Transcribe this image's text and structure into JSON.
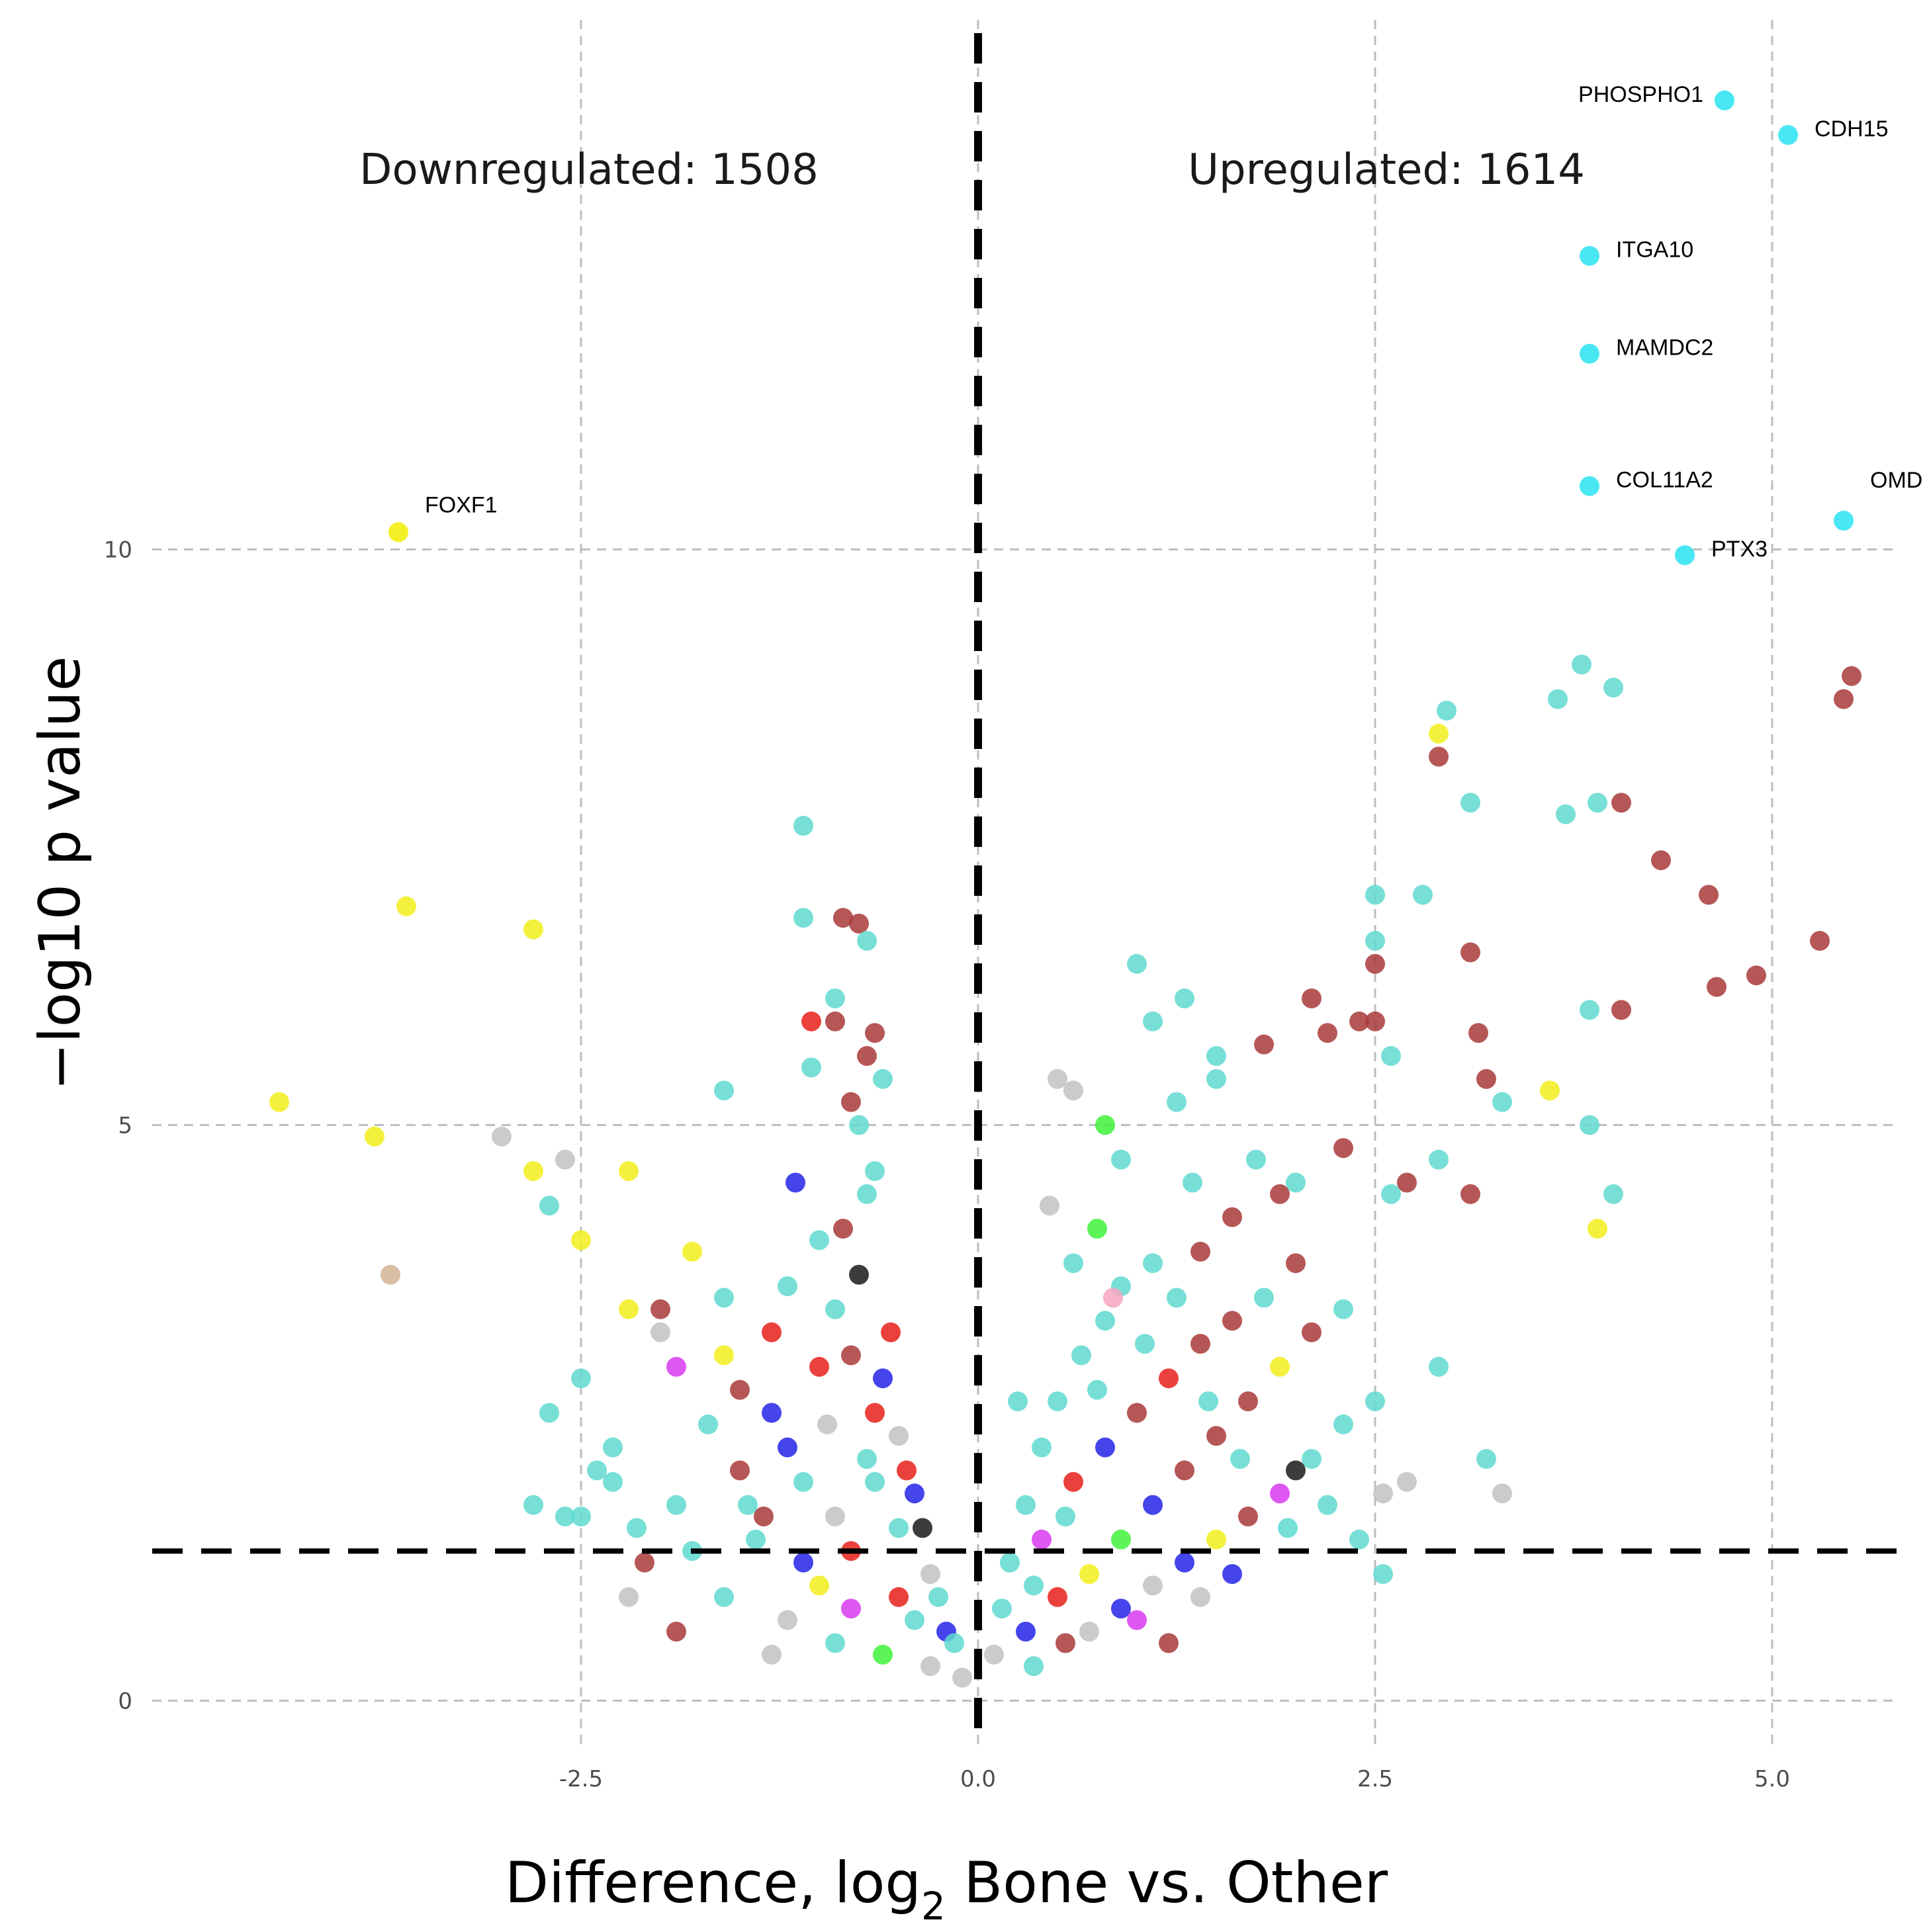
{
  "chart_data": {
    "type": "scatter",
    "subtype": "volcano",
    "title": "",
    "xlabel_parts": [
      "Difference, log",
      "2",
      " Bone vs. Other"
    ],
    "ylabel": "−log10 p value",
    "xlim": [
      -5.2,
      5.8
    ],
    "ylim": [
      -0.4,
      14.6
    ],
    "x_ticks": [
      -2.5,
      0.0,
      2.5,
      5.0
    ],
    "x_tick_labels": [
      "-2.5",
      "0.0",
      "2.5",
      "5.0"
    ],
    "y_ticks": [
      0,
      5,
      10
    ],
    "y_tick_labels": [
      "0",
      "5",
      "10"
    ],
    "grid": true,
    "threshold_lines": {
      "vertical_x": 0,
      "horizontal_y": 1.3
    },
    "annotations": {
      "downregulated": "Downregulated: 1508",
      "upregulated": "Upregulated: 1614"
    },
    "colors": {
      "turquoise": "#5fd9cf",
      "cyan": "#3fe6f2",
      "brown": "#a93a3a",
      "yellow": "#f2ef1c",
      "red": "#e8201a",
      "blue": "#2424e8",
      "grey": "#c2c2c2",
      "green": "#3ff23a",
      "magenta": "#d83af0",
      "black": "#1a1a1a",
      "tan": "#d2b394",
      "pink": "#f4a6c0"
    },
    "labeled_points": [
      {
        "gene": "PHOSPHO1",
        "x": 4.7,
        "y": 13.9,
        "color": "cyan",
        "anchor": "end"
      },
      {
        "gene": "CDH15",
        "x": 5.1,
        "y": 13.6,
        "color": "cyan",
        "anchor": "start"
      },
      {
        "gene": "ITGA10",
        "x": 3.85,
        "y": 12.55,
        "color": "cyan",
        "anchor": "start"
      },
      {
        "gene": "MAMDC2",
        "x": 3.85,
        "y": 11.7,
        "color": "cyan",
        "anchor": "start"
      },
      {
        "gene": "COL11A2",
        "x": 3.85,
        "y": 10.55,
        "color": "cyan",
        "anchor": "start"
      },
      {
        "gene": "OMD",
        "x": 5.45,
        "y": 10.25,
        "color": "cyan",
        "anchor": "start"
      },
      {
        "gene": "PTX3",
        "x": 4.45,
        "y": 9.95,
        "color": "cyan",
        "anchor": "start"
      },
      {
        "gene": "FOXF1",
        "x": -3.65,
        "y": 10.15,
        "color": "yellow",
        "anchor": "start"
      }
    ],
    "points": [
      [
        -4.4,
        5.2,
        "yellow"
      ],
      [
        -3.8,
        4.9,
        "yellow"
      ],
      [
        -3.6,
        6.9,
        "yellow"
      ],
      [
        -2.8,
        6.7,
        "yellow"
      ],
      [
        -3.0,
        4.9,
        "grey"
      ],
      [
        -2.6,
        4.7,
        "grey"
      ],
      [
        -2.8,
        4.6,
        "yellow"
      ],
      [
        -2.2,
        4.6,
        "yellow"
      ],
      [
        -3.7,
        3.7,
        "tan"
      ],
      [
        -2.7,
        4.3,
        "turquoise"
      ],
      [
        -2.5,
        4.0,
        "yellow"
      ],
      [
        -2.2,
        3.4,
        "yellow"
      ],
      [
        -1.8,
        3.9,
        "yellow"
      ],
      [
        -1.6,
        3.5,
        "turquoise"
      ],
      [
        -1.1,
        7.6,
        "turquoise"
      ],
      [
        -1.1,
        6.8,
        "turquoise"
      ],
      [
        -0.85,
        6.8,
        "brown"
      ],
      [
        -0.75,
        6.75,
        "brown"
      ],
      [
        -0.7,
        6.6,
        "turquoise"
      ],
      [
        -0.9,
        6.1,
        "turquoise"
      ],
      [
        -1.05,
        5.9,
        "red"
      ],
      [
        -0.9,
        5.9,
        "brown"
      ],
      [
        -0.65,
        5.8,
        "brown"
      ],
      [
        -0.7,
        5.6,
        "brown"
      ],
      [
        -1.05,
        5.5,
        "turquoise"
      ],
      [
        -0.6,
        5.4,
        "turquoise"
      ],
      [
        -0.8,
        5.2,
        "brown"
      ],
      [
        -1.6,
        5.3,
        "turquoise"
      ],
      [
        -0.75,
        5.0,
        "turquoise"
      ],
      [
        -0.65,
        4.6,
        "turquoise"
      ],
      [
        -1.15,
        4.5,
        "blue"
      ],
      [
        -0.85,
        4.1,
        "brown"
      ],
      [
        -0.75,
        3.7,
        "black"
      ],
      [
        -0.8,
        3.0,
        "brown"
      ],
      [
        -0.6,
        2.8,
        "blue"
      ],
      [
        -0.65,
        2.5,
        "red"
      ],
      [
        -1.3,
        3.2,
        "red"
      ],
      [
        -1.6,
        3.0,
        "yellow"
      ],
      [
        -2.0,
        3.4,
        "brown"
      ],
      [
        -2.0,
        3.2,
        "grey"
      ],
      [
        -1.9,
        2.9,
        "magenta"
      ],
      [
        -2.5,
        2.8,
        "turquoise"
      ],
      [
        -2.7,
        2.5,
        "turquoise"
      ],
      [
        -2.3,
        2.2,
        "turquoise"
      ],
      [
        -1.5,
        2.0,
        "brown"
      ],
      [
        -1.2,
        2.2,
        "blue"
      ],
      [
        -1.1,
        1.9,
        "turquoise"
      ],
      [
        -0.9,
        1.6,
        "grey"
      ],
      [
        -0.8,
        1.3,
        "red"
      ],
      [
        -0.5,
        1.5,
        "turquoise"
      ],
      [
        -0.4,
        1.8,
        "blue"
      ],
      [
        -0.3,
        1.1,
        "grey"
      ],
      [
        -1.4,
        1.4,
        "turquoise"
      ],
      [
        -1.8,
        1.3,
        "turquoise"
      ],
      [
        -2.1,
        1.2,
        "brown"
      ],
      [
        -1.6,
        0.9,
        "turquoise"
      ],
      [
        -1.2,
        0.7,
        "grey"
      ],
      [
        -0.9,
        0.5,
        "turquoise"
      ],
      [
        -0.6,
        0.4,
        "green"
      ],
      [
        -0.3,
        0.3,
        "grey"
      ],
      [
        -0.2,
        0.6,
        "blue"
      ],
      [
        -0.5,
        0.9,
        "red"
      ],
      [
        -1.0,
        1.0,
        "yellow"
      ],
      [
        -1.3,
        0.4,
        "grey"
      ],
      [
        -2.3,
        1.9,
        "turquoise"
      ],
      [
        -2.6,
        1.6,
        "turquoise"
      ],
      [
        -1.9,
        1.7,
        "turquoise"
      ],
      [
        -1.7,
        2.4,
        "turquoise"
      ],
      [
        -0.7,
        2.1,
        "turquoise"
      ],
      [
        -0.5,
        2.3,
        "grey"
      ],
      [
        -1.5,
        2.7,
        "brown"
      ],
      [
        -1.3,
        2.5,
        "blue"
      ],
      [
        -1.0,
        2.9,
        "red"
      ],
      [
        -0.9,
        3.4,
        "turquoise"
      ],
      [
        -1.2,
        3.6,
        "turquoise"
      ],
      [
        -1.0,
        4.0,
        "turquoise"
      ],
      [
        -0.7,
        4.4,
        "turquoise"
      ],
      [
        -0.55,
        3.2,
        "red"
      ],
      [
        -0.45,
        2.0,
        "red"
      ],
      [
        -0.35,
        1.5,
        "black"
      ],
      [
        -0.65,
        1.9,
        "turquoise"
      ],
      [
        -1.45,
        1.7,
        "turquoise"
      ],
      [
        -2.4,
        2.0,
        "turquoise"
      ],
      [
        -0.25,
        0.9,
        "turquoise"
      ],
      [
        -0.15,
        0.5,
        "turquoise"
      ],
      [
        -0.1,
        0.2,
        "grey"
      ],
      [
        -0.4,
        0.7,
        "turquoise"
      ],
      [
        -0.8,
        0.8,
        "magenta"
      ],
      [
        -1.1,
        1.2,
        "blue"
      ],
      [
        -1.9,
        0.6,
        "brown"
      ],
      [
        -2.2,
        0.9,
        "grey"
      ],
      [
        -2.8,
        1.7,
        "turquoise"
      ],
      [
        -2.5,
        1.6,
        "turquoise"
      ],
      [
        -2.15,
        1.5,
        "turquoise"
      ],
      [
        -1.35,
        1.6,
        "brown"
      ],
      [
        -0.95,
        2.4,
        "grey"
      ],
      [
        0.5,
        5.4,
        "grey"
      ],
      [
        0.6,
        5.3,
        "grey"
      ],
      [
        0.8,
        5.0,
        "green"
      ],
      [
        0.9,
        4.7,
        "turquoise"
      ],
      [
        1.0,
        6.4,
        "turquoise"
      ],
      [
        1.1,
        5.9,
        "turquoise"
      ],
      [
        1.3,
        6.1,
        "turquoise"
      ],
      [
        1.5,
        5.6,
        "turquoise"
      ],
      [
        1.5,
        5.4,
        "turquoise"
      ],
      [
        1.25,
        5.2,
        "turquoise"
      ],
      [
        1.8,
        5.7,
        "brown"
      ],
      [
        2.1,
        6.1,
        "brown"
      ],
      [
        2.2,
        5.8,
        "brown"
      ],
      [
        2.4,
        5.9,
        "brown"
      ],
      [
        2.5,
        5.9,
        "brown"
      ],
      [
        2.5,
        6.4,
        "brown"
      ],
      [
        2.6,
        5.6,
        "turquoise"
      ],
      [
        2.5,
        6.6,
        "turquoise"
      ],
      [
        2.5,
        7.0,
        "turquoise"
      ],
      [
        2.8,
        7.0,
        "turquoise"
      ],
      [
        2.9,
        8.2,
        "brown"
      ],
      [
        2.9,
        8.4,
        "yellow"
      ],
      [
        2.95,
        8.6,
        "turquoise"
      ],
      [
        3.1,
        6.5,
        "brown"
      ],
      [
        3.1,
        7.8,
        "turquoise"
      ],
      [
        3.15,
        5.8,
        "brown"
      ],
      [
        3.2,
        5.4,
        "brown"
      ],
      [
        3.3,
        5.2,
        "turquoise"
      ],
      [
        3.6,
        5.3,
        "yellow"
      ],
      [
        3.65,
        8.7,
        "turquoise"
      ],
      [
        3.7,
        7.7,
        "turquoise"
      ],
      [
        3.8,
        9.0,
        "turquoise"
      ],
      [
        3.9,
        7.8,
        "turquoise"
      ],
      [
        4.0,
        8.8,
        "turquoise"
      ],
      [
        4.05,
        7.8,
        "brown"
      ],
      [
        4.3,
        7.3,
        "brown"
      ],
      [
        4.6,
        7.0,
        "brown"
      ],
      [
        4.65,
        6.2,
        "brown"
      ],
      [
        4.9,
        6.3,
        "brown"
      ],
      [
        5.3,
        6.6,
        "brown"
      ],
      [
        5.45,
        8.7,
        "brown"
      ],
      [
        5.5,
        8.9,
        "brown"
      ],
      [
        3.85,
        6.0,
        "turquoise"
      ],
      [
        4.05,
        6.0,
        "brown"
      ],
      [
        3.85,
        5.0,
        "turquoise"
      ],
      [
        3.9,
        4.1,
        "yellow"
      ],
      [
        4.0,
        4.4,
        "turquoise"
      ],
      [
        2.9,
        2.9,
        "turquoise"
      ],
      [
        3.2,
        2.1,
        "turquoise"
      ],
      [
        3.3,
        1.8,
        "grey"
      ],
      [
        2.7,
        1.9,
        "grey"
      ],
      [
        2.55,
        1.8,
        "grey"
      ],
      [
        3.1,
        4.4,
        "brown"
      ],
      [
        2.7,
        4.5,
        "brown"
      ],
      [
        2.6,
        4.4,
        "turquoise"
      ],
      [
        2.9,
        4.7,
        "turquoise"
      ],
      [
        2.3,
        4.8,
        "brown"
      ],
      [
        2.0,
        4.5,
        "turquoise"
      ],
      [
        1.9,
        4.4,
        "brown"
      ],
      [
        1.75,
        4.7,
        "turquoise"
      ],
      [
        1.6,
        4.2,
        "brown"
      ],
      [
        1.4,
        3.9,
        "brown"
      ],
      [
        1.1,
        3.8,
        "turquoise"
      ],
      [
        0.9,
        3.6,
        "turquoise"
      ],
      [
        0.8,
        3.3,
        "turquoise"
      ],
      [
        0.65,
        3.0,
        "turquoise"
      ],
      [
        0.5,
        2.6,
        "turquoise"
      ],
      [
        0.4,
        2.2,
        "turquoise"
      ],
      [
        0.3,
        1.7,
        "turquoise"
      ],
      [
        0.2,
        1.2,
        "turquoise"
      ],
      [
        0.15,
        0.8,
        "turquoise"
      ],
      [
        0.1,
        0.4,
        "grey"
      ],
      [
        0.3,
        0.6,
        "blue"
      ],
      [
        0.5,
        0.9,
        "red"
      ],
      [
        0.7,
        1.1,
        "yellow"
      ],
      [
        0.9,
        1.4,
        "green"
      ],
      [
        1.1,
        1.7,
        "blue"
      ],
      [
        1.3,
        2.0,
        "brown"
      ],
      [
        1.5,
        2.3,
        "brown"
      ],
      [
        1.7,
        2.6,
        "brown"
      ],
      [
        1.9,
        2.9,
        "yellow"
      ],
      [
        2.1,
        3.2,
        "brown"
      ],
      [
        2.3,
        3.4,
        "turquoise"
      ],
      [
        0.4,
        1.4,
        "magenta"
      ],
      [
        0.6,
        1.9,
        "red"
      ],
      [
        0.8,
        2.2,
        "blue"
      ],
      [
        1.0,
        2.5,
        "brown"
      ],
      [
        1.2,
        2.8,
        "red"
      ],
      [
        1.4,
        3.1,
        "brown"
      ],
      [
        1.6,
        3.3,
        "brown"
      ],
      [
        1.8,
        3.5,
        "turquoise"
      ],
      [
        2.0,
        3.8,
        "brown"
      ],
      [
        0.7,
        0.6,
        "grey"
      ],
      [
        0.9,
        0.8,
        "blue"
      ],
      [
        1.1,
        1.0,
        "grey"
      ],
      [
        1.3,
        1.2,
        "blue"
      ],
      [
        1.5,
        1.4,
        "yellow"
      ],
      [
        1.7,
        1.6,
        "brown"
      ],
      [
        1.9,
        1.8,
        "magenta"
      ],
      [
        2.1,
        2.1,
        "turquoise"
      ],
      [
        2.3,
        2.4,
        "turquoise"
      ],
      [
        2.5,
        2.6,
        "turquoise"
      ],
      [
        0.35,
        0.3,
        "turquoise"
      ],
      [
        0.55,
        0.5,
        "brown"
      ],
      [
        1.0,
        0.7,
        "magenta"
      ],
      [
        1.4,
        0.9,
        "grey"
      ],
      [
        1.6,
        1.1,
        "blue"
      ],
      [
        1.2,
        0.5,
        "brown"
      ],
      [
        0.6,
        3.8,
        "turquoise"
      ],
      [
        0.75,
        4.1,
        "green"
      ],
      [
        0.45,
        4.3,
        "grey"
      ],
      [
        0.85,
        3.5,
        "pink"
      ],
      [
        1.35,
        4.5,
        "turquoise"
      ],
      [
        2.0,
        2.0,
        "black"
      ],
      [
        1.95,
        1.5,
        "turquoise"
      ],
      [
        2.4,
        1.4,
        "turquoise"
      ],
      [
        2.55,
        1.1,
        "turquoise"
      ],
      [
        2.2,
        1.7,
        "turquoise"
      ],
      [
        0.25,
        2.6,
        "turquoise"
      ],
      [
        0.55,
        1.6,
        "turquoise"
      ],
      [
        0.35,
        1.0,
        "turquoise"
      ],
      [
        0.75,
        2.7,
        "turquoise"
      ],
      [
        1.05,
        3.1,
        "turquoise"
      ],
      [
        1.25,
        3.5,
        "turquoise"
      ],
      [
        1.45,
        2.6,
        "turquoise"
      ],
      [
        1.65,
        2.1,
        "turquoise"
      ]
    ]
  }
}
